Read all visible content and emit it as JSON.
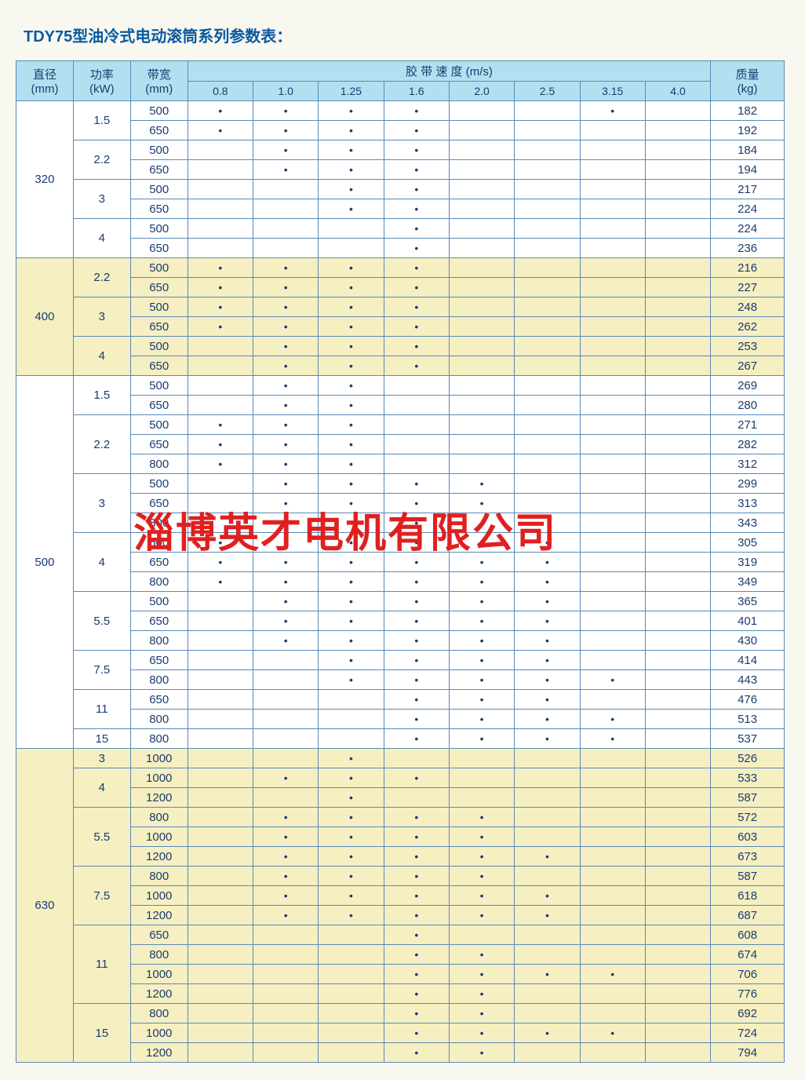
{
  "title_prefix": "TDY75",
  "title_rest": "型油冷式电动滚筒系列参数表：",
  "watermark": "淄博英才电机有限公司",
  "headers": {
    "diameter": "直径",
    "diameter_unit": "(mm)",
    "power": "功率",
    "power_unit": "(kW)",
    "width": "带宽",
    "width_unit": "(mm)",
    "speed": "胶 带 速 度 (m/s)",
    "mass": "质量",
    "mass_unit": "(kg)"
  },
  "speed_cols": [
    "0.8",
    "1.0",
    "1.25",
    "1.6",
    "2.0",
    "2.5",
    "3.15",
    "4.0"
  ],
  "colors": {
    "header_bg": "#b3e0f0",
    "border": "#5a8ab5",
    "text": "#1a3c6e",
    "title": "#0a5aa0",
    "band_yellow": "#f6efc2",
    "band_white": "#ffffff",
    "watermark": "#e02020",
    "page_bg": "#f8f7f0"
  },
  "groups": [
    {
      "dia": "320",
      "band": "white",
      "powers": [
        {
          "kw": "1.5",
          "rows": [
            {
              "bw": "500",
              "dots": [
                1,
                1,
                1,
                1,
                0,
                0,
                1,
                0
              ],
              "mass": "182"
            },
            {
              "bw": "650",
              "dots": [
                1,
                1,
                1,
                1,
                0,
                0,
                0,
                0
              ],
              "mass": "192"
            }
          ]
        },
        {
          "kw": "2.2",
          "rows": [
            {
              "bw": "500",
              "dots": [
                0,
                1,
                1,
                1,
                0,
                0,
                0,
                0
              ],
              "mass": "184"
            },
            {
              "bw": "650",
              "dots": [
                0,
                1,
                1,
                1,
                0,
                0,
                0,
                0
              ],
              "mass": "194"
            }
          ]
        },
        {
          "kw": "3",
          "rows": [
            {
              "bw": "500",
              "dots": [
                0,
                0,
                1,
                1,
                0,
                0,
                0,
                0
              ],
              "mass": "217"
            },
            {
              "bw": "650",
              "dots": [
                0,
                0,
                1,
                1,
                0,
                0,
                0,
                0
              ],
              "mass": "224"
            }
          ]
        },
        {
          "kw": "4",
          "rows": [
            {
              "bw": "500",
              "dots": [
                0,
                0,
                0,
                1,
                0,
                0,
                0,
                0
              ],
              "mass": "224"
            },
            {
              "bw": "650",
              "dots": [
                0,
                0,
                0,
                1,
                0,
                0,
                0,
                0
              ],
              "mass": "236"
            }
          ]
        }
      ]
    },
    {
      "dia": "400",
      "band": "yellow",
      "powers": [
        {
          "kw": "2.2",
          "rows": [
            {
              "bw": "500",
              "dots": [
                1,
                1,
                1,
                1,
                0,
                0,
                0,
                0
              ],
              "mass": "216"
            },
            {
              "bw": "650",
              "dots": [
                1,
                1,
                1,
                1,
                0,
                0,
                0,
                0
              ],
              "mass": "227"
            }
          ]
        },
        {
          "kw": "3",
          "rows": [
            {
              "bw": "500",
              "dots": [
                1,
                1,
                1,
                1,
                0,
                0,
                0,
                0
              ],
              "mass": "248"
            },
            {
              "bw": "650",
              "dots": [
                1,
                1,
                1,
                1,
                0,
                0,
                0,
                0
              ],
              "mass": "262"
            }
          ]
        },
        {
          "kw": "4",
          "rows": [
            {
              "bw": "500",
              "dots": [
                0,
                1,
                1,
                1,
                0,
                0,
                0,
                0
              ],
              "mass": "253"
            },
            {
              "bw": "650",
              "dots": [
                0,
                1,
                1,
                1,
                0,
                0,
                0,
                0
              ],
              "mass": "267"
            }
          ]
        }
      ]
    },
    {
      "dia": "500",
      "band": "white",
      "powers": [
        {
          "kw": "1.5",
          "rows": [
            {
              "bw": "500",
              "dots": [
                0,
                1,
                1,
                0,
                0,
                0,
                0,
                0
              ],
              "mass": "269"
            },
            {
              "bw": "650",
              "dots": [
                0,
                1,
                1,
                0,
                0,
                0,
                0,
                0
              ],
              "mass": "280"
            }
          ]
        },
        {
          "kw": "2.2",
          "rows": [
            {
              "bw": "500",
              "dots": [
                1,
                1,
                1,
                0,
                0,
                0,
                0,
                0
              ],
              "mass": "271"
            },
            {
              "bw": "650",
              "dots": [
                1,
                1,
                1,
                0,
                0,
                0,
                0,
                0
              ],
              "mass": "282"
            },
            {
              "bw": "800",
              "dots": [
                1,
                1,
                1,
                0,
                0,
                0,
                0,
                0
              ],
              "mass": "312"
            }
          ]
        },
        {
          "kw": "3",
          "rows": [
            {
              "bw": "500",
              "dots": [
                0,
                1,
                1,
                1,
                1,
                0,
                0,
                0
              ],
              "mass": "299"
            },
            {
              "bw": "650",
              "dots": [
                0,
                1,
                1,
                1,
                1,
                0,
                0,
                0
              ],
              "mass": "313"
            },
            {
              "bw": "800",
              "dots": [
                0,
                1,
                1,
                1,
                1,
                0,
                0,
                0
              ],
              "mass": "343"
            }
          ]
        },
        {
          "kw": "4",
          "rows": [
            {
              "bw": "500",
              "dots": [
                1,
                1,
                1,
                1,
                1,
                1,
                0,
                0
              ],
              "mass": "305"
            },
            {
              "bw": "650",
              "dots": [
                1,
                1,
                1,
                1,
                1,
                1,
                0,
                0
              ],
              "mass": "319"
            },
            {
              "bw": "800",
              "dots": [
                1,
                1,
                1,
                1,
                1,
                1,
                0,
                0
              ],
              "mass": "349"
            }
          ]
        },
        {
          "kw": "5.5",
          "rows": [
            {
              "bw": "500",
              "dots": [
                0,
                1,
                1,
                1,
                1,
                1,
                0,
                0
              ],
              "mass": "365"
            },
            {
              "bw": "650",
              "dots": [
                0,
                1,
                1,
                1,
                1,
                1,
                0,
                0
              ],
              "mass": "401"
            },
            {
              "bw": "800",
              "dots": [
                0,
                1,
                1,
                1,
                1,
                1,
                0,
                0
              ],
              "mass": "430"
            }
          ]
        },
        {
          "kw": "7.5",
          "rows": [
            {
              "bw": "650",
              "dots": [
                0,
                0,
                1,
                1,
                1,
                1,
                0,
                0
              ],
              "mass": "414"
            },
            {
              "bw": "800",
              "dots": [
                0,
                0,
                1,
                1,
                1,
                1,
                1,
                0
              ],
              "mass": "443"
            }
          ]
        },
        {
          "kw": "11",
          "rows": [
            {
              "bw": "650",
              "dots": [
                0,
                0,
                0,
                1,
                1,
                1,
                0,
                0
              ],
              "mass": "476"
            },
            {
              "bw": "800",
              "dots": [
                0,
                0,
                0,
                1,
                1,
                1,
                1,
                0
              ],
              "mass": "513"
            }
          ]
        },
        {
          "kw": "15",
          "rows": [
            {
              "bw": "800",
              "dots": [
                0,
                0,
                0,
                1,
                1,
                1,
                1,
                0
              ],
              "mass": "537"
            }
          ]
        }
      ]
    },
    {
      "dia": "630",
      "band": "yellow",
      "powers": [
        {
          "kw": "3",
          "rows": [
            {
              "bw": "1000",
              "dots": [
                0,
                0,
                1,
                0,
                0,
                0,
                0,
                0
              ],
              "mass": "526"
            }
          ]
        },
        {
          "kw": "4",
          "rows": [
            {
              "bw": "1000",
              "dots": [
                0,
                1,
                1,
                1,
                0,
                0,
                0,
                0
              ],
              "mass": "533"
            },
            {
              "bw": "1200",
              "dots": [
                0,
                0,
                1,
                0,
                0,
                0,
                0,
                0
              ],
              "mass": "587"
            }
          ]
        },
        {
          "kw": "5.5",
          "rows": [
            {
              "bw": "800",
              "dots": [
                0,
                1,
                1,
                1,
                1,
                0,
                0,
                0
              ],
              "mass": "572"
            },
            {
              "bw": "1000",
              "dots": [
                0,
                1,
                1,
                1,
                1,
                0,
                0,
                0
              ],
              "mass": "603"
            },
            {
              "bw": "1200",
              "dots": [
                0,
                1,
                1,
                1,
                1,
                1,
                0,
                0
              ],
              "mass": "673"
            }
          ]
        },
        {
          "kw": "7.5",
          "rows": [
            {
              "bw": "800",
              "dots": [
                0,
                1,
                1,
                1,
                1,
                0,
                0,
                0
              ],
              "mass": "587"
            },
            {
              "bw": "1000",
              "dots": [
                0,
                1,
                1,
                1,
                1,
                1,
                0,
                0
              ],
              "mass": "618"
            },
            {
              "bw": "1200",
              "dots": [
                0,
                1,
                1,
                1,
                1,
                1,
                0,
                0
              ],
              "mass": "687"
            }
          ]
        },
        {
          "kw": "11",
          "rows": [
            {
              "bw": "650",
              "dots": [
                0,
                0,
                0,
                1,
                0,
                0,
                0,
                0
              ],
              "mass": "608"
            },
            {
              "bw": "800",
              "dots": [
                0,
                0,
                0,
                1,
                1,
                0,
                0,
                0
              ],
              "mass": "674"
            },
            {
              "bw": "1000",
              "dots": [
                0,
                0,
                0,
                1,
                1,
                1,
                1,
                0
              ],
              "mass": "706"
            },
            {
              "bw": "1200",
              "dots": [
                0,
                0,
                0,
                1,
                1,
                0,
                0,
                0
              ],
              "mass": "776"
            }
          ]
        },
        {
          "kw": "15",
          "rows": [
            {
              "bw": "800",
              "dots": [
                0,
                0,
                0,
                1,
                1,
                0,
                0,
                0
              ],
              "mass": "692"
            },
            {
              "bw": "1000",
              "dots": [
                0,
                0,
                0,
                1,
                1,
                1,
                1,
                0
              ],
              "mass": "724"
            },
            {
              "bw": "1200",
              "dots": [
                0,
                0,
                0,
                1,
                1,
                0,
                0,
                0
              ],
              "mass": "794"
            }
          ]
        }
      ]
    }
  ]
}
